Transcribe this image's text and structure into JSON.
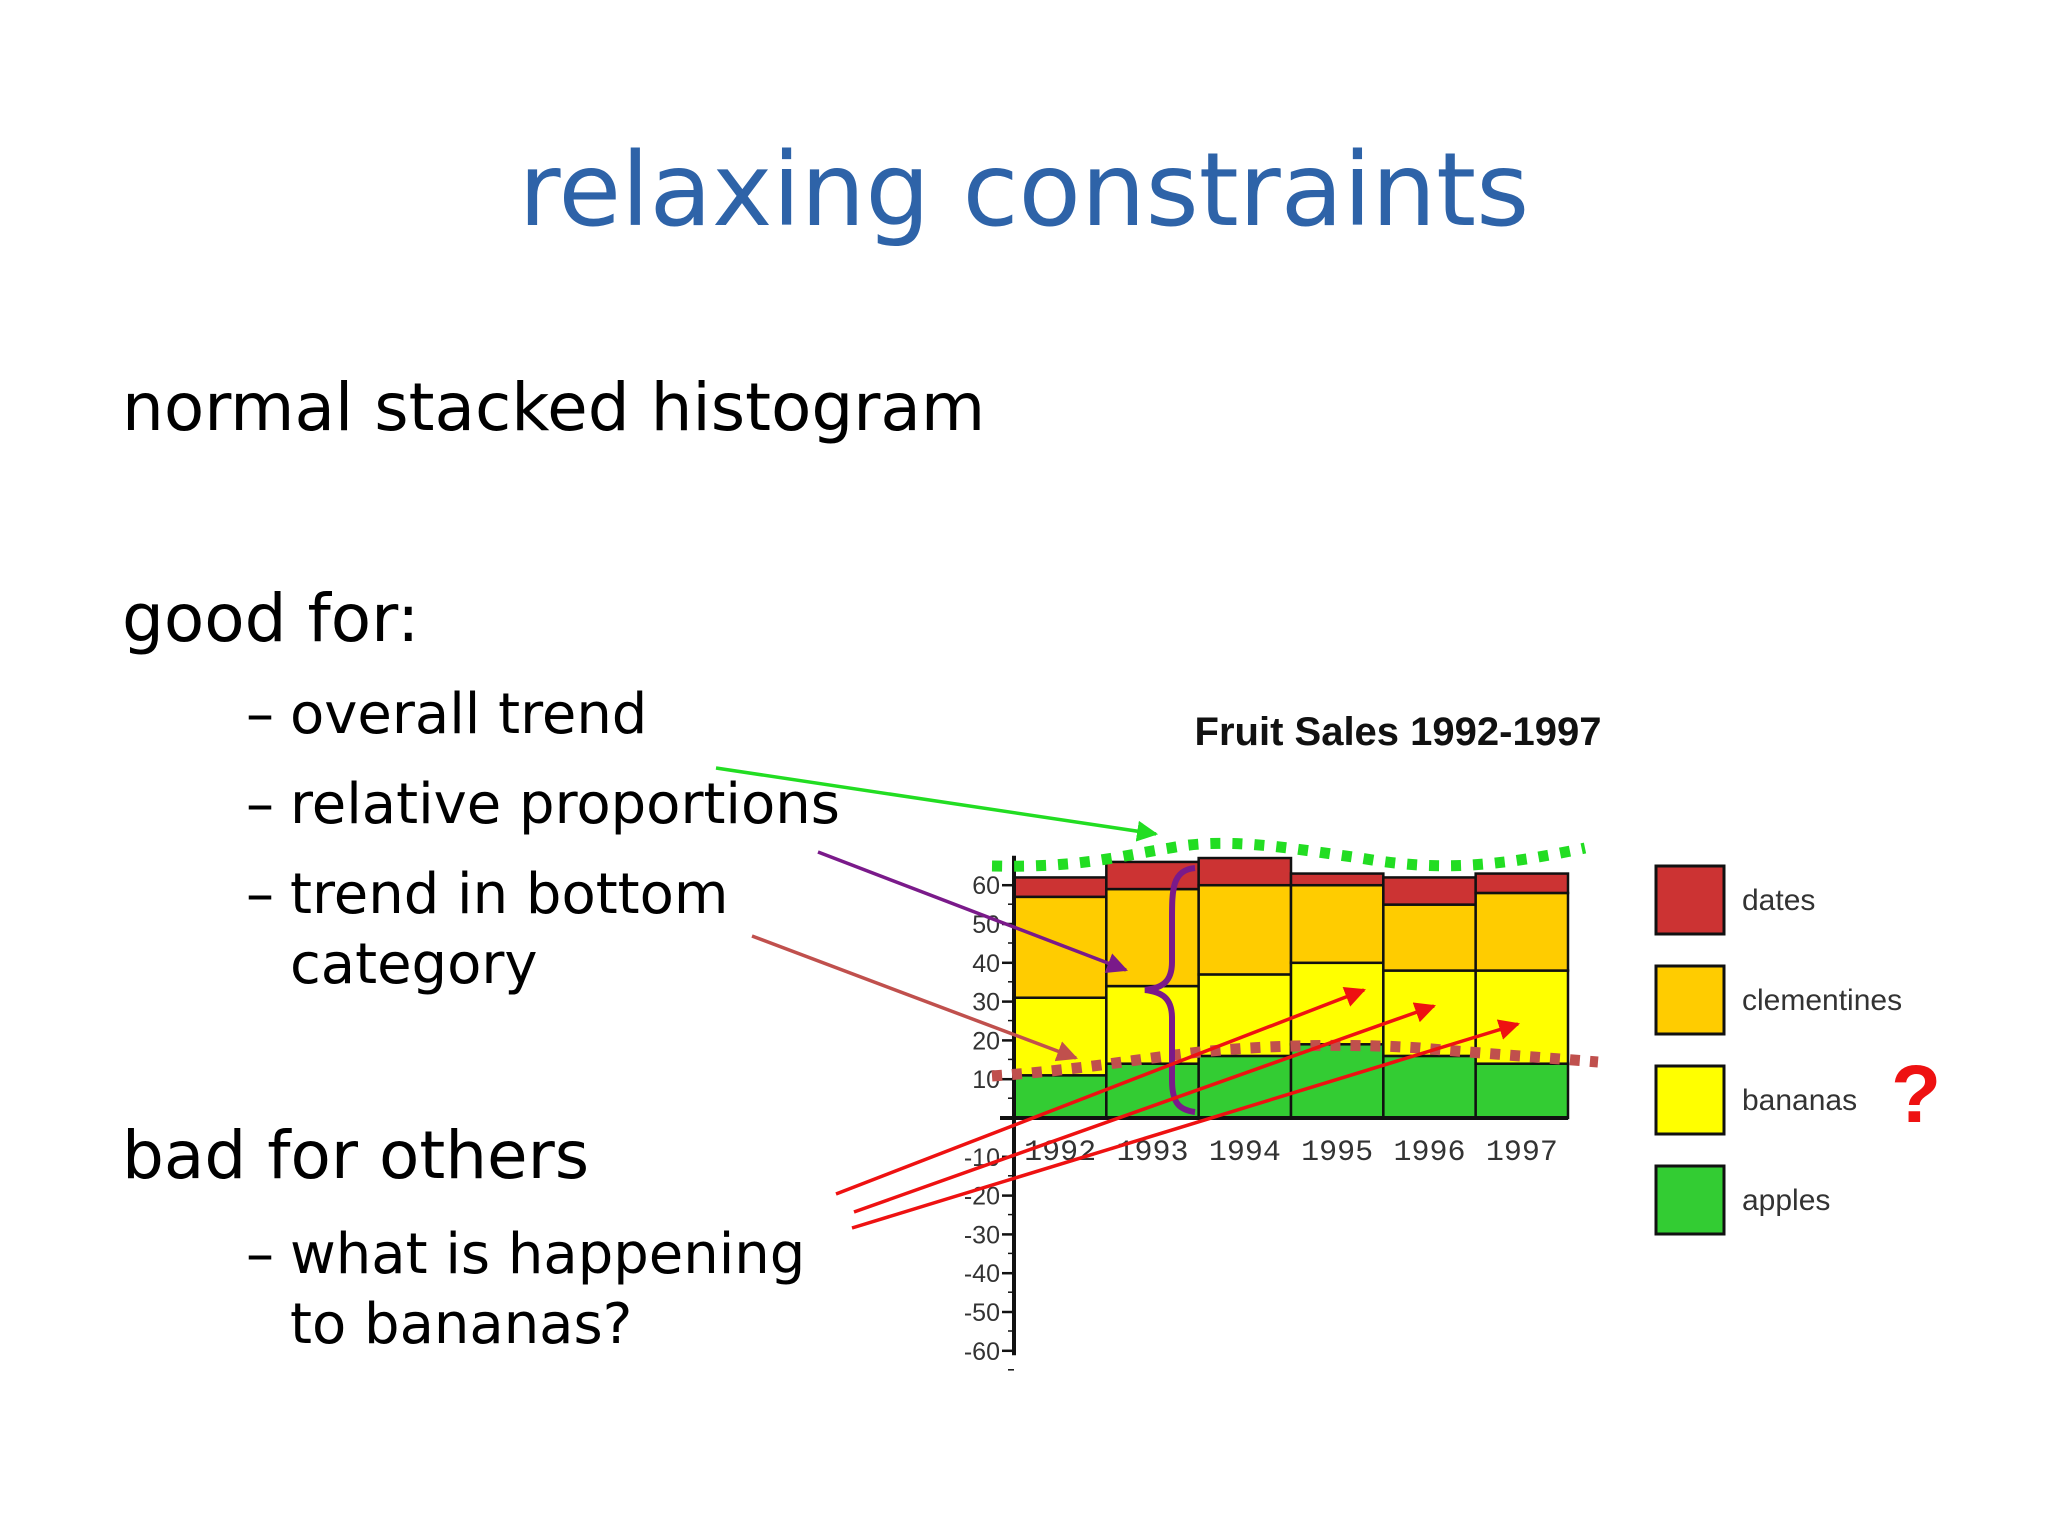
{
  "slide": {
    "title": "relaxing constraints",
    "heading1": "normal stacked histogram",
    "heading2": "good for:",
    "good_for": [
      {
        "dash": "–",
        "line1": "overall trend",
        "line2": ""
      },
      {
        "dash": "–",
        "line1": "relative proportions",
        "line2": ""
      },
      {
        "dash": "–",
        "line1": "trend in bottom",
        "line2": "category"
      }
    ],
    "heading3": "bad for others",
    "bad_for": [
      {
        "dash": "–",
        "line1": "what is happening",
        "line2": "to bananas?"
      }
    ],
    "question_mark": "?"
  },
  "colors": {
    "title": "#2e63a8",
    "dates": "#cc3333",
    "clementines": "#ffcc00",
    "bananas": "#ffff00",
    "apples": "#33cc33",
    "green_annotation": "#22dd22",
    "purple_annotation": "#7a1a8a",
    "brown_annotation": "#c0504d",
    "red_annotation": "#ee1111"
  },
  "chart_data": {
    "type": "bar",
    "stacked": true,
    "title": "Fruit Sales 1992-1997",
    "categories": [
      "1992",
      "1993",
      "1994",
      "1995",
      "1996",
      "1997"
    ],
    "series": [
      {
        "name": "apples",
        "color": "#33cc33",
        "values": [
          11,
          14,
          16,
          19,
          16,
          14
        ]
      },
      {
        "name": "bananas",
        "color": "#ffff00",
        "values": [
          20,
          20,
          21,
          21,
          22,
          24
        ]
      },
      {
        "name": "clementines",
        "color": "#ffcc00",
        "values": [
          26,
          25,
          23,
          20,
          17,
          20
        ]
      },
      {
        "name": "dates",
        "color": "#cc3333",
        "values": [
          5,
          7,
          7,
          3,
          7,
          5
        ]
      }
    ],
    "yticks": [
      60,
      50,
      40,
      30,
      20,
      10,
      -10,
      -20,
      -30,
      -40,
      -50,
      -60
    ],
    "ylim": [
      -65,
      65
    ],
    "legend": [
      "dates",
      "clementines",
      "bananas",
      "apples"
    ],
    "legend_position": "right",
    "grid": false
  }
}
